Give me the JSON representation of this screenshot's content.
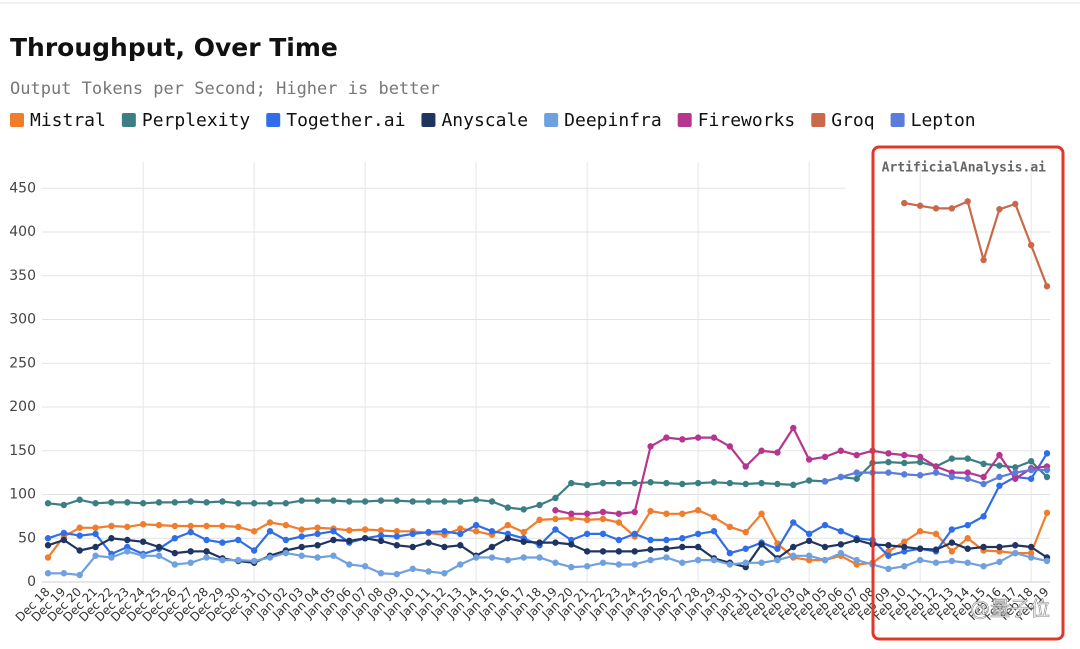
{
  "chart_data": {
    "type": "line",
    "title": "Throughput, Over Time",
    "subtitle": "Output Tokens per Second; Higher is better",
    "annotation": "ArtificialAnalysis.ai",
    "watermark": "@量子位",
    "categories": [
      "Dec 18",
      "Dec 19",
      "Dec 20",
      "Dec 21",
      "Dec 22",
      "Dec 23",
      "Dec 24",
      "Dec 25",
      "Dec 26",
      "Dec 27",
      "Dec 28",
      "Dec 29",
      "Dec 30",
      "Dec 31",
      "Jan 01",
      "Jan 02",
      "Jan 03",
      "Jan 04",
      "Jan 05",
      "Jan 06",
      "Jan 07",
      "Jan 08",
      "Jan 09",
      "Jan 10",
      "Jan 11",
      "Jan 12",
      "Jan 13",
      "Jan 14",
      "Jan 15",
      "Jan 16",
      "Jan 17",
      "Jan 18",
      "Jan 19",
      "Jan 20",
      "Jan 21",
      "Jan 22",
      "Jan 23",
      "Jan 24",
      "Jan 25",
      "Jan 26",
      "Jan 27",
      "Jan 28",
      "Jan 29",
      "Jan 30",
      "Jan 31",
      "Feb 01",
      "Feb 02",
      "Feb 03",
      "Feb 04",
      "Feb 05",
      "Feb 06",
      "Feb 07",
      "Feb 08",
      "Feb 09",
      "Feb 10",
      "Feb 11",
      "Feb 12",
      "Feb 13",
      "Feb 14",
      "Feb 15",
      "Feb 16",
      "Feb 17",
      "Feb 18",
      "Feb 19"
    ],
    "ylim": [
      0,
      480
    ],
    "yticks": [
      0,
      50,
      100,
      150,
      200,
      250,
      300,
      350,
      400,
      450
    ],
    "grid": true,
    "legend": "top",
    "series": [
      {
        "name": "Mistral",
        "color": "#f07c2c",
        "values": [
          28,
          52,
          62,
          62,
          64,
          63,
          66,
          65,
          64,
          64,
          64,
          64,
          63,
          58,
          68,
          65,
          60,
          62,
          61,
          59,
          60,
          59,
          58,
          58,
          56,
          54,
          61,
          58,
          54,
          65,
          57,
          71,
          72,
          73,
          71,
          72,
          68,
          52,
          81,
          78,
          78,
          82,
          74,
          63,
          57,
          78,
          44,
          28,
          25,
          25,
          30,
          20,
          22,
          35,
          46,
          58,
          55,
          35,
          50,
          36,
          35,
          33,
          33,
          79
        ]
      },
      {
        "name": "Perplexity",
        "color": "#3b7f85",
        "values": [
          90,
          88,
          94,
          90,
          91,
          91,
          90,
          91,
          91,
          92,
          91,
          92,
          90,
          90,
          90,
          90,
          93,
          93,
          93,
          92,
          92,
          93,
          93,
          92,
          92,
          92,
          92,
          94,
          92,
          85,
          83,
          88,
          96,
          113,
          111,
          113,
          113,
          113,
          114,
          113,
          112,
          113,
          114,
          113,
          112,
          113,
          112,
          111,
          116,
          115,
          120,
          118,
          136,
          137,
          136,
          137,
          132,
          141,
          141,
          135,
          133,
          131,
          138,
          120
        ]
      },
      {
        "name": "Together.ai",
        "color": "#2f6ee8",
        "values": [
          50,
          56,
          53,
          55,
          32,
          40,
          32,
          38,
          50,
          57,
          48,
          45,
          48,
          36,
          58,
          48,
          52,
          55,
          58,
          45,
          50,
          53,
          52,
          55,
          57,
          58,
          55,
          65,
          58,
          55,
          50,
          42,
          60,
          48,
          55,
          55,
          48,
          55,
          48,
          48,
          50,
          55,
          58,
          33,
          38,
          45,
          38,
          68,
          55,
          65,
          58,
          50,
          48,
          30,
          35,
          38,
          35,
          60,
          65,
          75,
          110,
          120,
          118,
          147
        ]
      },
      {
        "name": "Anyscale",
        "color": "#1f3461",
        "values": [
          42,
          48,
          36,
          40,
          50,
          48,
          46,
          40,
          33,
          35,
          35,
          27,
          24,
          22,
          30,
          36,
          40,
          42,
          48,
          47,
          50,
          47,
          42,
          40,
          45,
          40,
          42,
          30,
          40,
          50,
          46,
          45,
          45,
          43,
          35,
          35,
          35,
          35,
          37,
          38,
          40,
          40,
          27,
          22,
          17,
          43,
          27,
          40,
          47,
          40,
          43,
          48,
          43,
          42,
          40,
          38,
          37,
          45,
          38,
          40,
          40,
          42,
          40,
          28
        ]
      },
      {
        "name": "Deepinfra",
        "color": "#6fa0e0",
        "values": [
          10,
          10,
          8,
          30,
          28,
          35,
          30,
          30,
          20,
          22,
          28,
          25,
          25,
          24,
          28,
          33,
          30,
          28,
          30,
          20,
          18,
          10,
          9,
          15,
          12,
          10,
          20,
          28,
          28,
          25,
          28,
          28,
          22,
          17,
          18,
          22,
          20,
          20,
          25,
          28,
          22,
          25,
          25,
          20,
          22,
          22,
          25,
          30,
          30,
          25,
          33,
          25,
          20,
          15,
          18,
          25,
          22,
          24,
          22,
          18,
          23,
          33,
          28,
          24
        ]
      },
      {
        "name": "Fireworks",
        "color": "#b5368f",
        "values": [
          null,
          null,
          null,
          null,
          null,
          null,
          null,
          null,
          null,
          null,
          null,
          null,
          null,
          null,
          null,
          null,
          null,
          null,
          null,
          null,
          null,
          null,
          null,
          null,
          null,
          null,
          null,
          null,
          null,
          null,
          null,
          null,
          82,
          78,
          78,
          80,
          78,
          80,
          155,
          165,
          163,
          165,
          165,
          155,
          132,
          150,
          148,
          176,
          140,
          143,
          150,
          145,
          150,
          147,
          145,
          143,
          132,
          125,
          125,
          120,
          145,
          118,
          130,
          132
        ]
      },
      {
        "name": "Groq",
        "color": "#c8694a",
        "values": [
          null,
          null,
          null,
          null,
          null,
          null,
          null,
          null,
          null,
          null,
          null,
          null,
          null,
          null,
          null,
          null,
          null,
          null,
          null,
          null,
          null,
          null,
          null,
          null,
          null,
          null,
          null,
          null,
          null,
          null,
          null,
          null,
          null,
          null,
          null,
          null,
          null,
          null,
          null,
          null,
          null,
          null,
          null,
          null,
          null,
          null,
          null,
          null,
          null,
          null,
          null,
          null,
          null,
          null,
          433,
          430,
          427,
          427,
          435,
          368,
          426,
          432,
          385,
          338
        ]
      },
      {
        "name": "Lepton",
        "color": "#5a7ddb",
        "values": [
          null,
          null,
          null,
          null,
          null,
          null,
          null,
          null,
          null,
          null,
          null,
          null,
          null,
          null,
          null,
          null,
          null,
          null,
          null,
          null,
          null,
          null,
          null,
          null,
          null,
          null,
          null,
          null,
          null,
          null,
          null,
          null,
          null,
          null,
          null,
          null,
          null,
          null,
          null,
          null,
          null,
          null,
          null,
          null,
          null,
          null,
          null,
          null,
          null,
          115,
          120,
          125,
          125,
          125,
          123,
          122,
          125,
          120,
          118,
          112,
          120,
          125,
          128,
          128
        ]
      }
    ]
  }
}
